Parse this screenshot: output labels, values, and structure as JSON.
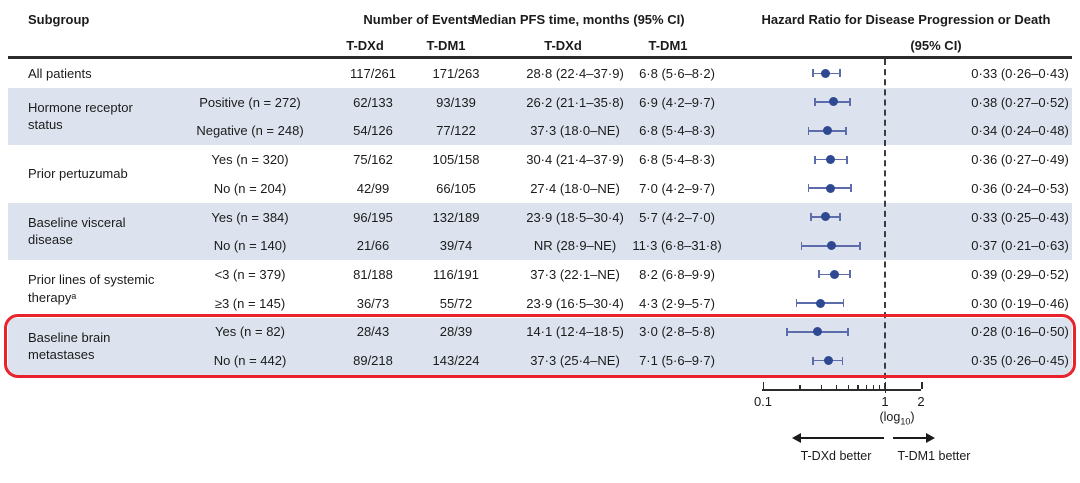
{
  "colors": {
    "band": "#dce3ee",
    "marker_dot": "#2e4992",
    "whisker": "#5d6dab",
    "highlight_border": "#e8232b",
    "reference_line": "#3c3c3c"
  },
  "header": {
    "subgroup": "Subgroup",
    "events_title": "Number of Events",
    "pfs_title": "Median PFS time, months (95% CI)",
    "hr_title": "Hazard Ratio for Disease Progression or Death",
    "hr_subtitle": "(95% CI)",
    "events_arm1": "T-DXd",
    "events_arm2": "T-DM1",
    "pfs_arm1": "T-DXd",
    "pfs_arm2": "T-DM1"
  },
  "axis": {
    "label_left": "0.1",
    "label_one": "1",
    "label_two": "2",
    "log_prefix": "(log",
    "log_sub": "10",
    "log_suffix": ")"
  },
  "footer": {
    "left_arrow_label": "T-DXd better",
    "right_arrow_label": "T-DM1 better"
  },
  "chart_data": {
    "type": "forest-plot",
    "x_scale": "log10",
    "x_axis_ticks": [
      0.1,
      0.2,
      0.3,
      0.4,
      0.5,
      0.6,
      0.7,
      0.8,
      0.9,
      1,
      2
    ],
    "x_axis_tick_labels": [
      "0.1",
      "1",
      "2"
    ],
    "x_axis_note": "(log10)",
    "reference_line": 1,
    "groups": [
      {
        "label": "All patients",
        "shaded": false,
        "highlighted": false,
        "rows": [
          {
            "sublabel": "",
            "events_tdxd": "117/261",
            "events_tdm1": "171/263",
            "pfs_tdxd": "28·8 (22·4–37·9)",
            "pfs_tdm1": "6·8 (5·6–8·2)",
            "hr": 0.33,
            "ci_low": 0.26,
            "ci_high": 0.43,
            "hr_text": "0·33 (0·26–0·43)"
          }
        ]
      },
      {
        "label": "Hormone receptor status",
        "shaded": true,
        "highlighted": false,
        "rows": [
          {
            "sublabel": "Positive (n = 272)",
            "events_tdxd": "62/133",
            "events_tdm1": "93/139",
            "pfs_tdxd": "26·2 (21·1–35·8)",
            "pfs_tdm1": "6·9 (4·2–9·7)",
            "hr": 0.38,
            "ci_low": 0.27,
            "ci_high": 0.52,
            "hr_text": "0·38 (0·27–0·52)"
          },
          {
            "sublabel": "Negative (n = 248)",
            "events_tdxd": "54/126",
            "events_tdm1": "77/122",
            "pfs_tdxd": "37·3 (18·0–NE)",
            "pfs_tdm1": "6·8 (5·4–8·3)",
            "hr": 0.34,
            "ci_low": 0.24,
            "ci_high": 0.48,
            "hr_text": "0·34 (0·24–0·48)"
          }
        ]
      },
      {
        "label": "Prior pertuzumab",
        "shaded": false,
        "highlighted": false,
        "rows": [
          {
            "sublabel": "Yes (n = 320)",
            "events_tdxd": "75/162",
            "events_tdm1": "105/158",
            "pfs_tdxd": "30·4 (21·4–37·9)",
            "pfs_tdm1": "6·8 (5·4–8·3)",
            "hr": 0.36,
            "ci_low": 0.27,
            "ci_high": 0.49,
            "hr_text": "0·36 (0·27–0·49)"
          },
          {
            "sublabel": "No (n = 204)",
            "events_tdxd": "42/99",
            "events_tdm1": "66/105",
            "pfs_tdxd": "27·4 (18·0–NE)",
            "pfs_tdm1": "7·0 (4·2–9·7)",
            "hr": 0.36,
            "ci_low": 0.24,
            "ci_high": 0.53,
            "hr_text": "0·36 (0·24–0·53)"
          }
        ]
      },
      {
        "label": "Baseline visceral disease",
        "shaded": true,
        "highlighted": false,
        "rows": [
          {
            "sublabel": "Yes (n = 384)",
            "events_tdxd": "96/195",
            "events_tdm1": "132/189",
            "pfs_tdxd": "23·9 (18·5–30·4)",
            "pfs_tdm1": "5·7 (4·2–7·0)",
            "hr": 0.33,
            "ci_low": 0.25,
            "ci_high": 0.43,
            "hr_text": "0·33 (0·25–0·43)"
          },
          {
            "sublabel": "No (n = 140)",
            "events_tdxd": "21/66",
            "events_tdm1": "39/74",
            "pfs_tdxd": "NR (28·9–NE)",
            "pfs_tdm1": "11·3 (6·8–31·8)",
            "hr": 0.37,
            "ci_low": 0.21,
            "ci_high": 0.63,
            "hr_text": "0·37 (0·21–0·63)"
          }
        ]
      },
      {
        "label": "Prior lines of systemic therapyᵃ",
        "shaded": false,
        "highlighted": false,
        "rows": [
          {
            "sublabel": "<3 (n = 379)",
            "events_tdxd": "81/188",
            "events_tdm1": "116/191",
            "pfs_tdxd": "37·3 (22·1–NE)",
            "pfs_tdm1": "8·2 (6·8–9·9)",
            "hr": 0.39,
            "ci_low": 0.29,
            "ci_high": 0.52,
            "hr_text": "0·39 (0·29–0·52)"
          },
          {
            "sublabel": "≥3 (n = 145)",
            "events_tdxd": "36/73",
            "events_tdm1": "55/72",
            "pfs_tdxd": "23·9 (16·5–30·4)",
            "pfs_tdm1": "4·3 (2·9–5·7)",
            "hr": 0.3,
            "ci_low": 0.19,
            "ci_high": 0.46,
            "hr_text": "0·30 (0·19–0·46)"
          }
        ]
      },
      {
        "label": "Baseline brain metastases",
        "shaded": true,
        "highlighted": true,
        "rows": [
          {
            "sublabel": "Yes (n = 82)",
            "events_tdxd": "28/43",
            "events_tdm1": "28/39",
            "pfs_tdxd": "14·1 (12·4–18·5)",
            "pfs_tdm1": "3·0 (2·8–5·8)",
            "hr": 0.28,
            "ci_low": 0.16,
            "ci_high": 0.5,
            "hr_text": "0·28 (0·16–0·50)"
          },
          {
            "sublabel": "No (n = 442)",
            "events_tdxd": "89/218",
            "events_tdm1": "143/224",
            "pfs_tdxd": "37·3 (25·4–NE)",
            "pfs_tdm1": "7·1 (5·6–9·7)",
            "hr": 0.35,
            "ci_low": 0.26,
            "ci_high": 0.45,
            "hr_text": "0·35 (0·26–0·45)"
          }
        ]
      }
    ]
  }
}
